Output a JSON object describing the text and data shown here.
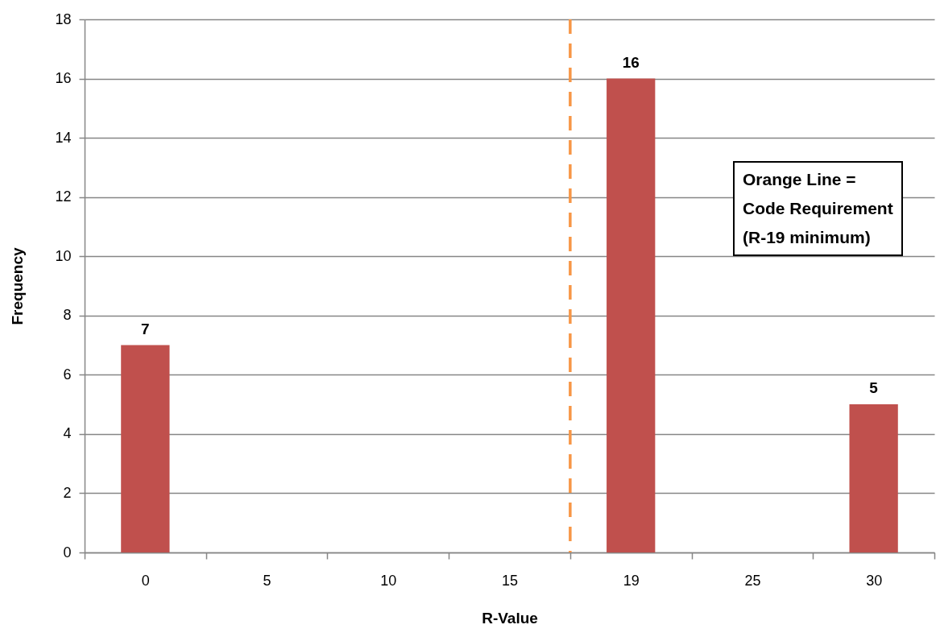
{
  "chart_data": {
    "type": "bar",
    "categories": [
      "0",
      "5",
      "10",
      "15",
      "19",
      "25",
      "30"
    ],
    "values": [
      7,
      0,
      0,
      0,
      16,
      0,
      5
    ],
    "value_labels": [
      "7",
      null,
      null,
      null,
      "16",
      null,
      "5"
    ],
    "color": "#c0504d",
    "xlabel": "R-Value",
    "ylabel": "Frequency",
    "ylim": [
      0,
      18
    ],
    "yticks": [
      0,
      2,
      4,
      6,
      8,
      10,
      12,
      14,
      16,
      18
    ],
    "grid": "y",
    "ref_lines": [
      {
        "axis": "x",
        "value": "19",
        "color": "#f79646",
        "line_style": "dashed"
      }
    ],
    "annotations": [
      "Orange Line =\nCode Requirement\n(R-19 minimum)"
    ]
  }
}
